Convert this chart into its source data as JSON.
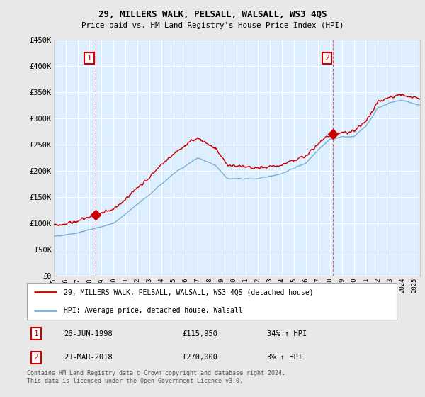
{
  "title": "29, MILLERS WALK, PELSALL, WALSALL, WS3 4QS",
  "subtitle": "Price paid vs. HM Land Registry's House Price Index (HPI)",
  "legend_line1": "29, MILLERS WALK, PELSALL, WALSALL, WS3 4QS (detached house)",
  "legend_line2": "HPI: Average price, detached house, Walsall",
  "sale1_label": "1",
  "sale1_date": "26-JUN-1998",
  "sale1_price": "£115,950",
  "sale1_hpi": "34% ↑ HPI",
  "sale2_label": "2",
  "sale2_date": "29-MAR-2018",
  "sale2_price": "£270,000",
  "sale2_hpi": "3% ↑ HPI",
  "footer": "Contains HM Land Registry data © Crown copyright and database right 2024.\nThis data is licensed under the Open Government Licence v3.0.",
  "red_color": "#cc0000",
  "blue_color": "#7ab0d4",
  "background_color": "#e8e8e8",
  "plot_background": "#ddeeff",
  "ylim": [
    0,
    450000
  ],
  "xlim_start": 1995.0,
  "xlim_end": 2025.5,
  "sale1_year": 1998.48,
  "sale1_price_val": 115950,
  "sale2_year": 2018.24,
  "sale2_price_val": 270000,
  "xtick_years": [
    1995,
    1996,
    1997,
    1998,
    1999,
    2000,
    2001,
    2002,
    2003,
    2004,
    2005,
    2006,
    2007,
    2008,
    2009,
    2010,
    2011,
    2012,
    2013,
    2014,
    2015,
    2016,
    2017,
    2018,
    2019,
    2020,
    2021,
    2022,
    2023,
    2024,
    2025
  ],
  "ytick_vals": [
    0,
    50000,
    100000,
    150000,
    200000,
    250000,
    300000,
    350000,
    400000,
    450000
  ]
}
